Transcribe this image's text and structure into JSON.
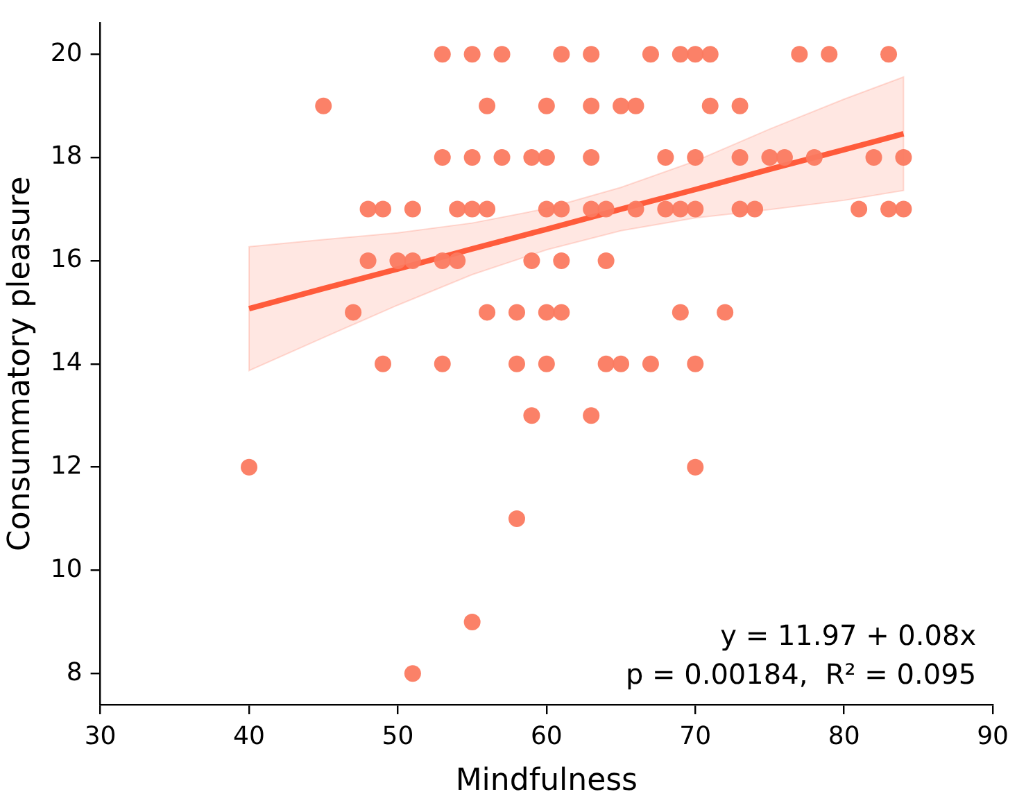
{
  "chart_data": {
    "type": "scatter",
    "xlabel": "Mindfulness",
    "ylabel": "Consummatory pleasure",
    "xlim": [
      30,
      90
    ],
    "xticks": [
      30,
      40,
      50,
      60,
      70,
      80,
      90
    ],
    "ylim": [
      7.4,
      20.6
    ],
    "yticks": [
      8,
      10,
      12,
      14,
      16,
      18,
      20
    ],
    "grid": false,
    "legend": false,
    "annotations": [
      "y = 11.97 + 0.08x",
      "p = 0.00184,  R² = 0.095"
    ],
    "series": [
      {
        "color": "#fb7a60",
        "marker": "circle",
        "x": [
          53,
          55,
          57,
          61,
          63,
          67,
          69,
          70,
          71,
          77,
          79,
          83,
          45,
          56,
          60,
          63,
          65,
          66,
          71,
          73,
          53,
          55,
          57,
          59,
          60,
          63,
          68,
          70,
          73,
          75,
          76,
          78,
          82,
          84,
          48,
          49,
          51,
          54,
          55,
          56,
          60,
          61,
          63,
          64,
          66,
          68,
          69,
          70,
          73,
          74,
          81,
          83,
          84,
          48,
          50,
          51,
          53,
          54,
          59,
          61,
          64,
          47,
          56,
          58,
          60,
          61,
          69,
          72,
          49,
          53,
          58,
          60,
          64,
          65,
          67,
          70,
          59,
          63,
          40,
          70,
          58,
          55,
          51
        ],
        "values": [
          20,
          20,
          20,
          20,
          20,
          20,
          20,
          20,
          20,
          20,
          20,
          20,
          19,
          19,
          19,
          19,
          19,
          19,
          19,
          19,
          18,
          18,
          18,
          18,
          18,
          18,
          18,
          18,
          18,
          18,
          18,
          18,
          18,
          18,
          17,
          17,
          17,
          17,
          17,
          17,
          17,
          17,
          17,
          17,
          17,
          17,
          17,
          17,
          17,
          17,
          17,
          17,
          17,
          16,
          16,
          16,
          16,
          16,
          16,
          16,
          16,
          15,
          15,
          15,
          15,
          15,
          15,
          15,
          14,
          14,
          14,
          14,
          14,
          14,
          14,
          14,
          13,
          13,
          12,
          12,
          11,
          9,
          8
        ]
      },
      {
        "type": "line",
        "color": "#ff5b3b",
        "marker": "none",
        "line_style": "solid",
        "x": [
          40,
          45,
          50,
          55,
          60,
          65,
          70,
          75,
          80,
          84
        ],
        "values": [
          15.07,
          15.46,
          15.84,
          16.23,
          16.61,
          17.0,
          17.38,
          17.77,
          18.15,
          18.46
        ],
        "lower": [
          13.87,
          14.51,
          15.14,
          15.73,
          16.21,
          16.58,
          16.83,
          16.99,
          17.17,
          17.36
        ],
        "upper": [
          16.27,
          16.41,
          16.54,
          16.73,
          17.01,
          17.42,
          17.93,
          18.55,
          19.13,
          19.56
        ]
      }
    ]
  }
}
